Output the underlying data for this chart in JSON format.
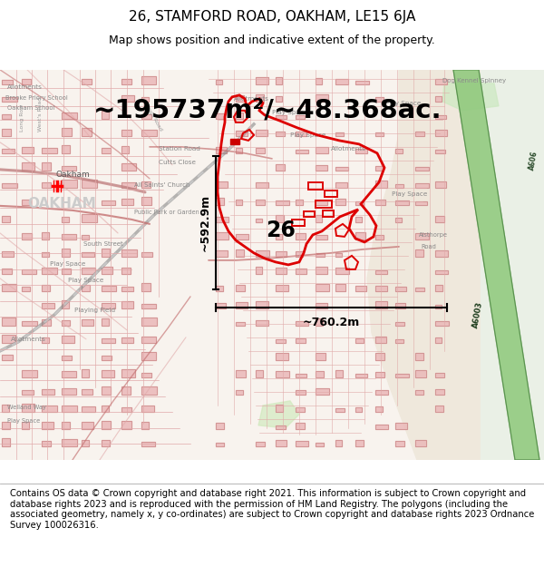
{
  "title_line1": "26, STAMFORD ROAD, OAKHAM, LE15 6JA",
  "title_line2": "Map shows position and indicative extent of the property.",
  "area_text": "~195737m²/~48.368ac.",
  "height_text": "~592.9m",
  "width_text": "~760.2m",
  "label_26": "26",
  "copyright_text": "Contains OS data © Crown copyright and database right 2021. This information is subject to Crown copyright and database rights 2023 and is reproduced with the permission of HM Land Registry. The polygons (including the associated geometry, namely x, y co-ordinates) are subject to Crown copyright and database rights 2023 Ordnance Survey 100026316.",
  "bg_color": "#ffffff",
  "map_bg": "#f7f2ed",
  "title_fontsize": 11,
  "subtitle_fontsize": 9,
  "area_fontsize": 21,
  "label_fontsize": 17,
  "scalebar_fontsize": 9,
  "copyright_fontsize": 7.2
}
